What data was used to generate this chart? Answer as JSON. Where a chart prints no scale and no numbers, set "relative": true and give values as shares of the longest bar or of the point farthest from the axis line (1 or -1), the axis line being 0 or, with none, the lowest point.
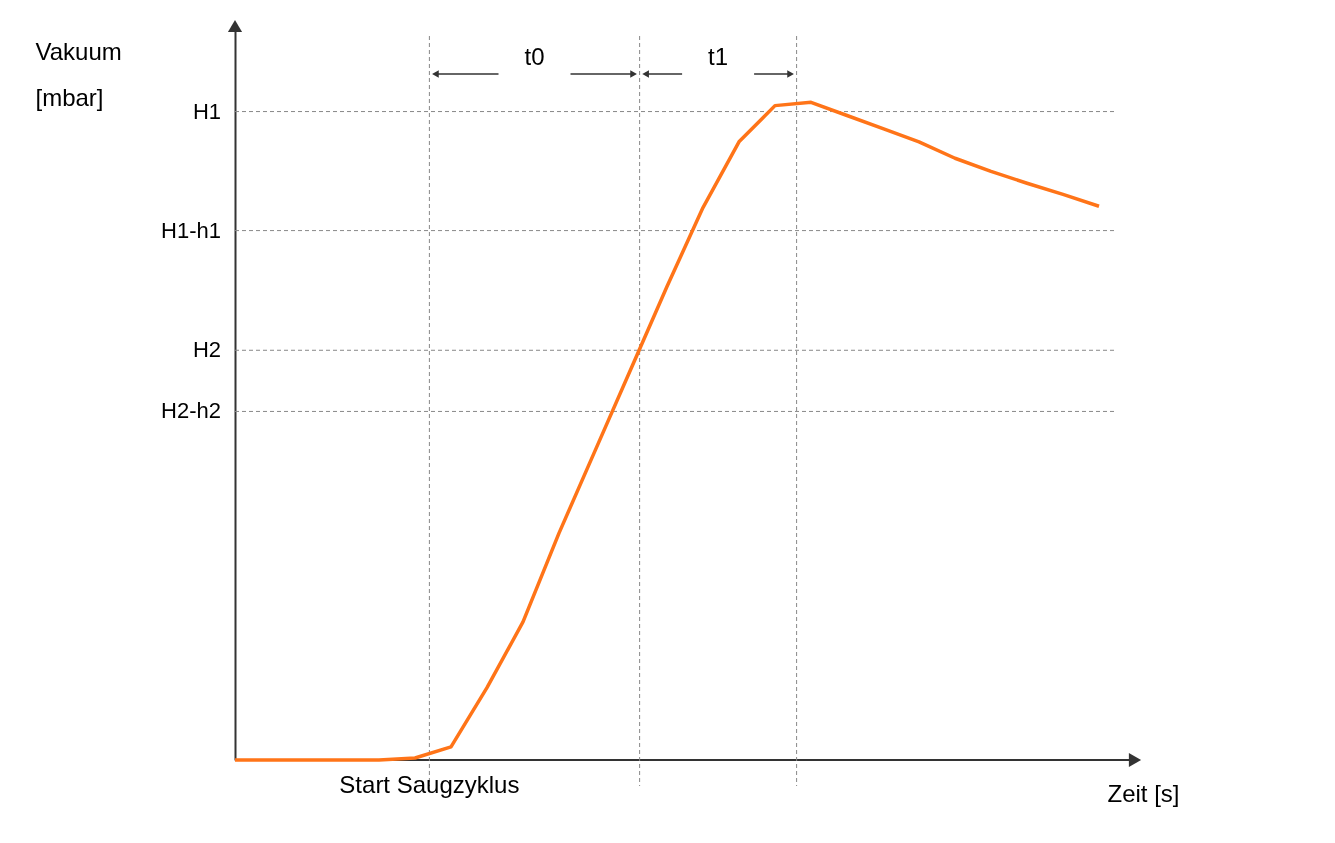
{
  "chart_data": {
    "type": "line",
    "relative": true,
    "xlabel": "Zeit [s]",
    "ylabel": "Vakuum [mbar]",
    "categories": [
      null,
      null,
      null,
      null,
      null,
      null,
      null,
      null,
      null,
      null,
      null,
      null,
      null,
      null,
      null,
      null,
      null,
      null,
      null,
      null,
      null,
      null,
      null,
      null,
      null
    ],
    "series": [
      {
        "color": "#ff7418",
        "values": [
          0,
          0,
          0,
          0,
          0,
          0.003,
          0.02,
          0.11,
          0.21,
          0.345,
          0.47,
          0.595,
          0.72,
          0.84,
          0.94,
          0.995,
          1,
          0.98,
          0.96,
          0.94,
          0.915,
          0.895,
          0.877,
          0.86,
          0.842
        ]
      }
    ],
    "ref_lines": [
      {
        "axis": "y",
        "value": 0.986,
        "label": "H1",
        "color": "#888888",
        "line_style": "dashed"
      },
      {
        "axis": "y",
        "value": 0.805,
        "label": "H1-h1",
        "color": "#888888",
        "line_style": "dashed"
      },
      {
        "axis": "y",
        "value": 0.623,
        "label": "H2",
        "color": "#888888",
        "line_style": "dashed"
      },
      {
        "axis": "y",
        "value": 0.53,
        "label": "H2-h2",
        "color": "#888888",
        "line_style": "dashed"
      }
    ],
    "annotations": [
      "Start Saugzyklus",
      "t0",
      "t1"
    ]
  }
}
